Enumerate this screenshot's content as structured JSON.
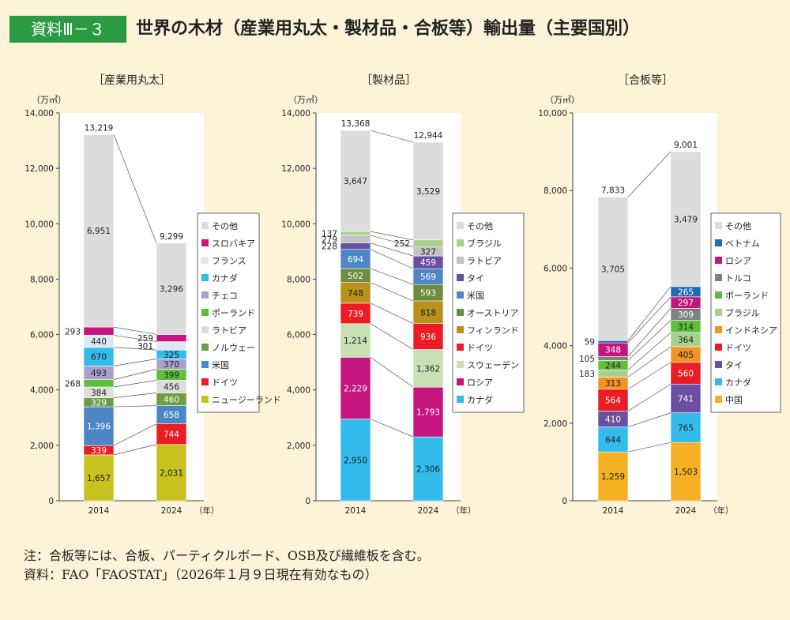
{
  "header": {
    "badge": "資料Ⅲ－３",
    "title": "世界の木材（産業用丸太・製材品・合板等）輸出量（主要国別）"
  },
  "colors": {
    "background": "#fcf3d8",
    "badge": "#2a9b43",
    "plot_area": "#ffffff",
    "connector": "#555555"
  },
  "chart_data": [
    {
      "type": "bar",
      "stacked": true,
      "title": "［産業用丸太］",
      "unit": "（万㎥）",
      "xlabel_unit": "（年）",
      "categories": [
        "2014",
        "2024"
      ],
      "ylim": [
        0,
        14000
      ],
      "yticks": [
        0,
        2000,
        4000,
        6000,
        8000,
        10000,
        12000,
        14000
      ],
      "ytick_labels": [
        "0",
        "2,000",
        "4,000",
        "6,000",
        "8,000",
        "10,000",
        "12,000",
        "14,000"
      ],
      "totals": [
        13219,
        9299
      ],
      "total_labels": [
        "13,219",
        "9,299"
      ],
      "series": [
        {
          "name": "ニュージーランド",
          "color": "#c7c21f",
          "values": [
            1657,
            2031
          ],
          "labels": [
            "1,657",
            "2,031"
          ]
        },
        {
          "name": "ドイツ",
          "color": "#ea1c24",
          "values": [
            339,
            744
          ],
          "labels": [
            "339",
            "744"
          ]
        },
        {
          "name": "米国",
          "color": "#4d86c6",
          "values": [
            1396,
            658
          ],
          "labels": [
            "1,396",
            "658"
          ]
        },
        {
          "name": "ノルウェー",
          "color": "#6d9d44",
          "values": [
            329,
            460
          ],
          "labels": [
            "329",
            "460"
          ]
        },
        {
          "name": "ラトビア",
          "color": "#dcdcdc",
          "values": [
            384,
            456
          ],
          "labels": [
            "384",
            "456"
          ]
        },
        {
          "name": "ポーランド",
          "color": "#5fbe3a",
          "values": [
            268,
            399
          ],
          "labels": [
            "268",
            "399"
          ]
        },
        {
          "name": "チェコ",
          "color": "#a7a1cc",
          "values": [
            493,
            370
          ],
          "labels": [
            "493",
            "370"
          ]
        },
        {
          "name": "カナダ",
          "color": "#33bbeb",
          "values": [
            670,
            325
          ],
          "labels": [
            "670",
            "325"
          ]
        },
        {
          "name": "フランス",
          "color": "#dde8f6",
          "values": [
            440,
            301
          ],
          "labels": [
            "440",
            "301"
          ]
        },
        {
          "name": "スロバキア",
          "color": "#c5157f",
          "values": [
            293,
            259
          ],
          "labels": [
            "293",
            "259"
          ]
        },
        {
          "name": "その他",
          "color": "#dcdcdc",
          "values": [
            6951,
            3296
          ],
          "labels": [
            "6,951",
            "3,296"
          ]
        }
      ]
    },
    {
      "type": "bar",
      "stacked": true,
      "title": "［製材品］",
      "unit": "（万㎥）",
      "xlabel_unit": "（年）",
      "categories": [
        "2014",
        "2024"
      ],
      "ylim": [
        0,
        14000
      ],
      "yticks": [
        0,
        2000,
        4000,
        6000,
        8000,
        10000,
        12000,
        14000
      ],
      "ytick_labels": [
        "0",
        "2,000",
        "4,000",
        "6,000",
        "8,000",
        "10,000",
        "12,000",
        "14,000"
      ],
      "totals": [
        13368,
        12944
      ],
      "total_labels": [
        "13,368",
        "12,944"
      ],
      "series": [
        {
          "name": "カナダ",
          "color": "#33bbeb",
          "values": [
            2950,
            2306
          ],
          "labels": [
            "2,950",
            "2,306"
          ]
        },
        {
          "name": "ロシア",
          "color": "#c5157f",
          "values": [
            2229,
            1793
          ],
          "labels": [
            "2,229",
            "1,793"
          ]
        },
        {
          "name": "スウェーデン",
          "color": "#c8e0b4",
          "values": [
            1214,
            1362
          ],
          "labels": [
            "1,214",
            "1,362"
          ]
        },
        {
          "name": "ドイツ",
          "color": "#ea1c24",
          "values": [
            739,
            936
          ],
          "labels": [
            "739",
            "936"
          ]
        },
        {
          "name": "フィンランド",
          "color": "#b8901a",
          "values": [
            748,
            818
          ],
          "labels": [
            "748",
            "818"
          ]
        },
        {
          "name": "オーストリア",
          "color": "#6f8b3d",
          "values": [
            502,
            593
          ],
          "labels": [
            "502",
            "593"
          ]
        },
        {
          "name": "米国",
          "color": "#4d86c6",
          "values": [
            694,
            569
          ],
          "labels": [
            "694",
            "569"
          ]
        },
        {
          "name": "タイ",
          "color": "#6b4fa0",
          "values": [
            228,
            459
          ],
          "labels": [
            "228",
            "459"
          ]
        },
        {
          "name": "ラトビア",
          "color": "#c4c4c4",
          "values": [
            279,
            327
          ],
          "labels": [
            "279",
            "327"
          ]
        },
        {
          "name": "ブラジル",
          "color": "#a8d08d",
          "values": [
            137,
            252
          ],
          "labels": [
            "137",
            "252"
          ]
        },
        {
          "name": "その他",
          "color": "#dcdcdc",
          "values": [
            3647,
            3529
          ],
          "labels": [
            "3,647",
            "3,529"
          ]
        }
      ]
    },
    {
      "type": "bar",
      "stacked": true,
      "title": "［合板等］",
      "unit": "（万㎥）",
      "xlabel_unit": "（年）",
      "categories": [
        "2014",
        "2024"
      ],
      "ylim": [
        0,
        10000
      ],
      "yticks": [
        0,
        2000,
        4000,
        6000,
        8000,
        10000
      ],
      "ytick_labels": [
        "0",
        "2,000",
        "4,000",
        "6,000",
        "8,000",
        "10,000"
      ],
      "totals": [
        7833,
        9001
      ],
      "total_labels": [
        "7,833",
        "9,001"
      ],
      "series": [
        {
          "name": "中国",
          "color": "#f5b121",
          "values": [
            1259,
            1503
          ],
          "labels": [
            "1,259",
            "1,503"
          ]
        },
        {
          "name": "カナダ",
          "color": "#33bbeb",
          "values": [
            644,
            765
          ],
          "labels": [
            "644",
            "765"
          ]
        },
        {
          "name": "タイ",
          "color": "#6b4fa0",
          "values": [
            410,
            741
          ],
          "labels": [
            "410",
            "741"
          ]
        },
        {
          "name": "ドイツ",
          "color": "#ea1c24",
          "values": [
            564,
            560
          ],
          "labels": [
            "564",
            "560"
          ]
        },
        {
          "name": "インドネシア",
          "color": "#f39323",
          "values": [
            313,
            405
          ],
          "labels": [
            "313",
            "405"
          ]
        },
        {
          "name": "ブラジル",
          "color": "#a8d08d",
          "values": [
            183,
            364
          ],
          "labels": [
            "183",
            "364"
          ]
        },
        {
          "name": "ポーランド",
          "color": "#5fbe3a",
          "values": [
            244,
            314
          ],
          "labels": [
            "244",
            "314"
          ]
        },
        {
          "name": "トルコ",
          "color": "#808080",
          "values": [
            105,
            309
          ],
          "labels": [
            "105",
            "309"
          ]
        },
        {
          "name": "ロシア",
          "color": "#c5157f",
          "values": [
            348,
            297
          ],
          "labels": [
            "348",
            "297"
          ]
        },
        {
          "name": "ベトナム",
          "color": "#1f6db5",
          "values": [
            59,
            265
          ],
          "labels": [
            "59",
            "265"
          ]
        },
        {
          "name": "その他",
          "color": "#dcdcdc",
          "values": [
            3705,
            3479
          ],
          "labels": [
            "3,705",
            "3,479"
          ]
        }
      ]
    }
  ],
  "notes": {
    "note": "注：合板等には、合板、パーティクルボード、OSB及び繊維板を含む。",
    "source": "資料：FAO「FAOSTAT」（2026年１月９日現在有効なもの）"
  }
}
